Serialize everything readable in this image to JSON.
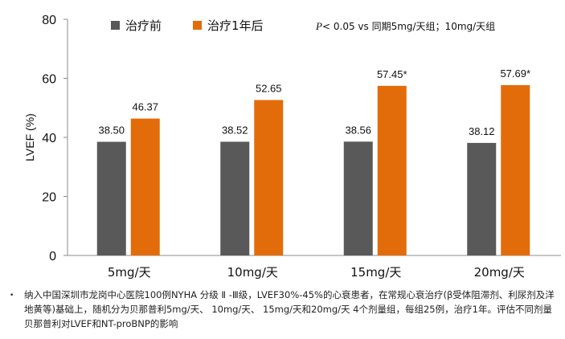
{
  "chart_data": {
    "type": "bar",
    "categories": [
      "5mg/天",
      "10mg/天",
      "15mg/天",
      "20mg/天"
    ],
    "series": [
      {
        "name": "治疗前",
        "color": "#595959",
        "values": [
          38.5,
          38.52,
          38.56,
          38.12
        ],
        "labels": [
          "38.50",
          "38.52",
          "38.56",
          "38.12"
        ]
      },
      {
        "name": "治疗1年后",
        "color": "#e36c0a",
        "values": [
          46.37,
          52.65,
          57.45,
          57.69
        ],
        "labels": [
          "46.37",
          "52.65",
          "57.45*",
          "57.69*"
        ]
      }
    ],
    "ylabel": "LVEF (%)",
    "ylim": [
      0,
      80
    ],
    "yticks": [
      "0",
      "20",
      "40",
      "60",
      "80"
    ],
    "grid": false,
    "annotation": {
      "p_symbol": "P",
      "text": "< 0.05  vs 同期5mg/天组；10mg/天组"
    }
  },
  "footnote": {
    "bullet": "•",
    "text": "纳入中国深圳市龙岗中心医院100例NYHA 分级 Ⅱ -Ⅲ级，LVEF30%-45%的心衰患者，在常规心衰治疗(β受体阻滞剂、利尿剂及洋地黄等)基础上，随机分为贝那普利5mg/天、 10mg/天、 15mg/天和20mg/天 4个剂量组，每组25例，治疗1年。评估不同剂量贝那普利对LVEF和NT-proBNP的影响"
  }
}
